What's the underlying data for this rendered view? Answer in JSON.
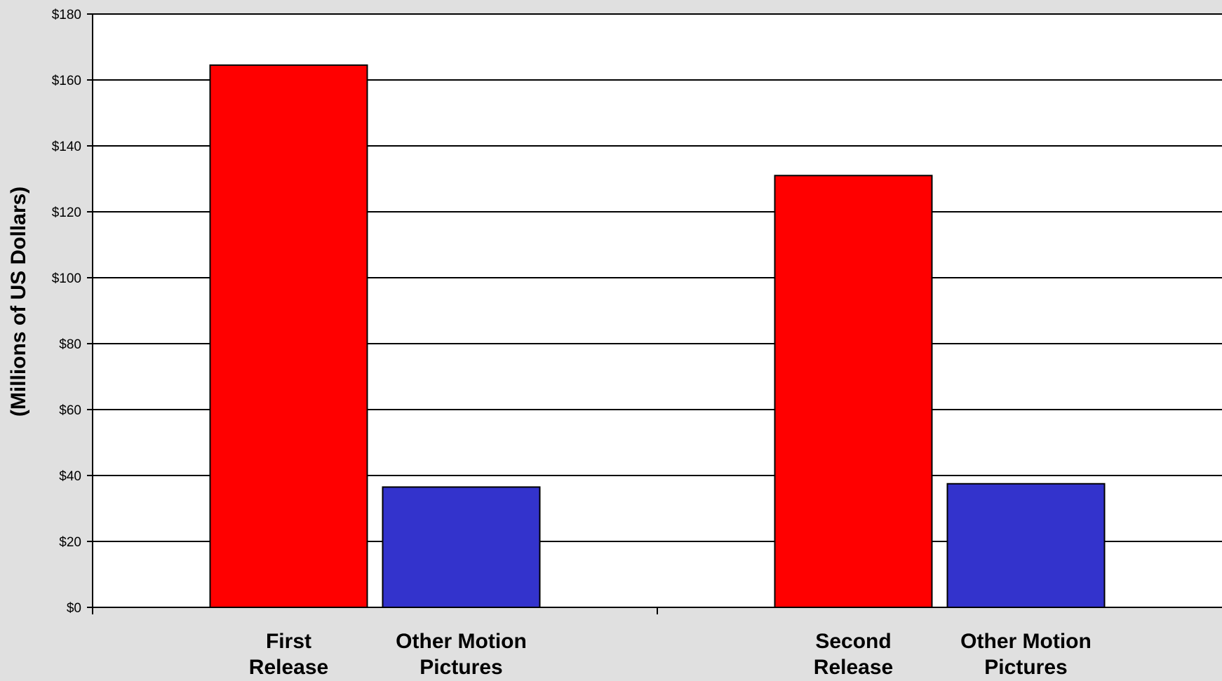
{
  "chart_data": {
    "type": "bar",
    "title": "",
    "xlabel": "",
    "ylabel": "(Millions of US Dollars)",
    "ylim": [
      0,
      180
    ],
    "y_ticks": [
      0,
      20,
      40,
      60,
      80,
      100,
      120,
      140,
      160,
      180
    ],
    "y_tick_labels": [
      "$0",
      "$20",
      "$40",
      "$60",
      "$80",
      "$100",
      "$120",
      "$140",
      "$160",
      "$180"
    ],
    "grid": true,
    "legend": "none",
    "groups": [
      {
        "bars": [
          {
            "label": [
              "First",
              "Release"
            ],
            "value": 164.5,
            "color": "#ff0000"
          },
          {
            "label": [
              "Other Motion",
              "Pictures"
            ],
            "value": 36.5,
            "color": "#3333cc"
          }
        ]
      },
      {
        "bars": [
          {
            "label": [
              "Second",
              "Release"
            ],
            "value": 131,
            "color": "#ff0000"
          },
          {
            "label": [
              "Other Motion",
              "Pictures"
            ],
            "value": 37.5,
            "color": "#3333cc"
          }
        ]
      }
    ]
  }
}
